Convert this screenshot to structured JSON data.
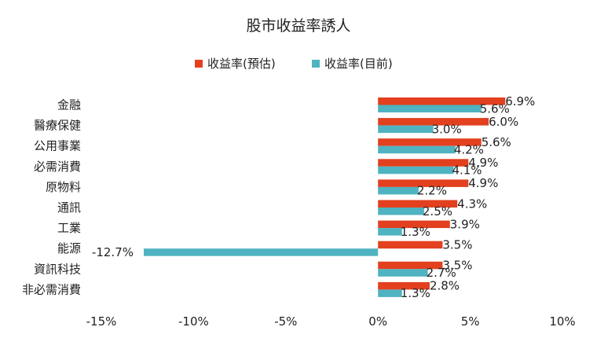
{
  "chart_data": {
    "type": "bar",
    "orientation": "horizontal",
    "title": "股市收益率誘人",
    "categories": [
      "金融",
      "醫療保健",
      "公用事業",
      "必需消費",
      "原物料",
      "通訊",
      "工業",
      "能源",
      "資訊科技",
      "非必需消費"
    ],
    "series": [
      {
        "name": "收益率(預估)",
        "color": "#e2401f",
        "values": [
          6.9,
          6.0,
          5.6,
          4.9,
          4.9,
          4.3,
          3.9,
          3.5,
          3.5,
          2.8
        ],
        "labels": [
          "6.9%",
          "6.0%",
          "5.6%",
          "4.9%",
          "4.9%",
          "4.3%",
          "3.9%",
          "3.5%",
          "3.5%",
          "2.8%"
        ]
      },
      {
        "name": "收益率(目前)",
        "color": "#4fb3c1",
        "values": [
          5.6,
          3.0,
          4.2,
          4.1,
          2.2,
          2.5,
          1.3,
          -12.7,
          2.7,
          1.3
        ],
        "labels": [
          "5.6%",
          "3.0%",
          "4.2%",
          "4.1%",
          "2.2%",
          "2.5%",
          "1.3%",
          "-12.7%",
          "2.7%",
          "1.3%"
        ]
      }
    ],
    "xlim": [
      -15,
      10
    ],
    "xticks": [
      -15,
      -10,
      -5,
      0,
      5,
      10
    ],
    "xtick_labels": [
      "-15%",
      "-10%",
      "-5%",
      "0%",
      "5%",
      "10%"
    ],
    "xlabel": "",
    "ylabel": "",
    "legend_position": "top",
    "grid": false
  }
}
